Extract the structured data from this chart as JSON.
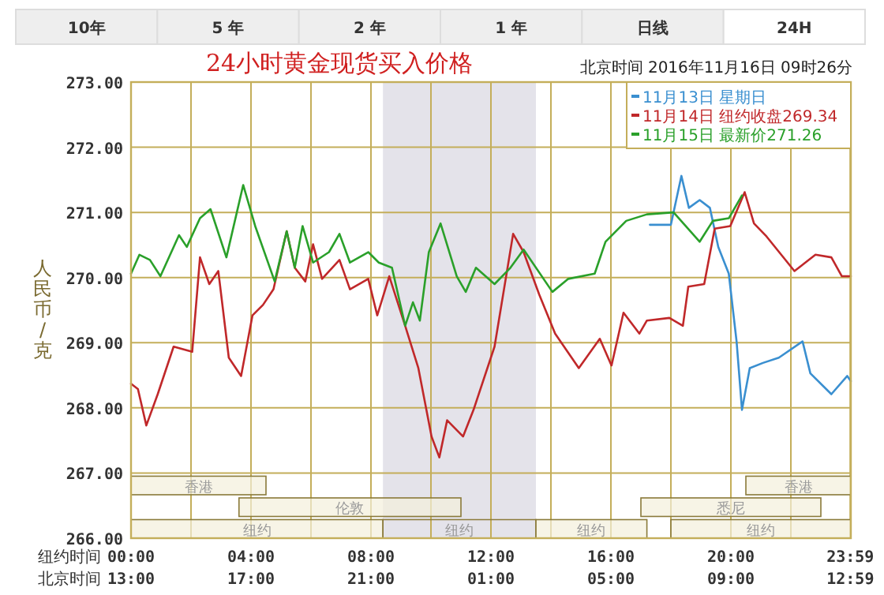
{
  "chart_data": {
    "type": "line",
    "title": "24小时黄金现货买入价格",
    "subtitle": "北京时间  2016年11月16日 09时26分",
    "ylabel": "人民币/克",
    "xlabel": "纽约时间",
    "x2label": "北京时间",
    "annotations": [
      "10年",
      "5 年",
      "2 年",
      "1 年",
      "日线",
      "24H"
    ],
    "xlim": [
      0,
      24
    ],
    "ylim": [
      266,
      273
    ],
    "xticks": [
      {
        "value": 0,
        "label": "00:00"
      },
      {
        "value": 2,
        "label": null
      },
      {
        "value": 4,
        "label": "04:00"
      },
      {
        "value": 6,
        "label": null
      },
      {
        "value": 8,
        "label": "08:00"
      },
      {
        "value": 10,
        "label": null
      },
      {
        "value": 12,
        "label": "12:00"
      },
      {
        "value": 14,
        "label": null
      },
      {
        "value": 16,
        "label": "16:00"
      },
      {
        "value": 18,
        "label": null
      },
      {
        "value": 20,
        "label": "20:00"
      },
      {
        "value": 22,
        "label": null
      },
      {
        "value": 23.98,
        "label": "23:59"
      }
    ],
    "x2lim": [
      "2016-11-15T13:00",
      "2016-11-16T13:00"
    ],
    "x2ticks": [
      {
        "value": "2016-11-15T13:00",
        "label": "13:00"
      },
      {
        "value": "2016-11-15T17:00",
        "label": "17:00"
      },
      {
        "value": "2016-11-15T21:00",
        "label": "21:00"
      },
      {
        "value": "2016-11-16T01:00",
        "label": "01:00"
      },
      {
        "value": "2016-11-16T05:00",
        "label": "05:00"
      },
      {
        "value": "2016-11-16T09:00",
        "label": "09:00"
      },
      {
        "value": "2016-11-16T12:59",
        "label": "12:59"
      }
    ],
    "yticks": [
      {
        "value": 266,
        "label": "266.00"
      },
      {
        "value": 267,
        "label": "267.00"
      },
      {
        "value": 268,
        "label": "268.00"
      },
      {
        "value": 269,
        "label": "269.00"
      },
      {
        "value": 270,
        "label": "270.00"
      },
      {
        "value": 271,
        "label": "271.00"
      },
      {
        "value": 272,
        "label": "272.00"
      },
      {
        "value": 273,
        "label": "273.00"
      }
    ],
    "grid": true,
    "legend": "top right",
    "bands": [
      {
        "axis": "x",
        "from": 0,
        "to": 4.5,
        "label": "香港"
      },
      {
        "axis": "x",
        "from": 20.5,
        "to": 24,
        "label": "香港"
      },
      {
        "axis": "x",
        "from": 3.6,
        "to": 11,
        "label": "伦敦"
      },
      {
        "axis": "x",
        "from": 17,
        "to": 23,
        "label": "悉尼"
      },
      {
        "axis": "x",
        "from": 0,
        "to": 8.4,
        "label": "纽约"
      },
      {
        "axis": "x",
        "from": 8.4,
        "to": 13.5,
        "label": "纽约",
        "color": "#e4e3ea"
      },
      {
        "axis": "x",
        "from": 13.5,
        "to": 17.2,
        "label": "纽约"
      },
      {
        "axis": "x",
        "from": 18,
        "to": 24,
        "label": "纽约"
      }
    ],
    "series": [
      {
        "name": "11月13日  星期日",
        "color": "#3a8fd0",
        "x": [
          17.3,
          18.0,
          18.35,
          18.6,
          18.96,
          19.3,
          19.58,
          19.93,
          20.19,
          20.37,
          20.63,
          21.07,
          21.6,
          22.39,
          22.65,
          23.35,
          23.88,
          24
        ],
        "values": [
          270.81,
          270.81,
          271.56,
          271.07,
          271.19,
          271.07,
          270.47,
          270.06,
          269.02,
          267.97,
          268.61,
          268.69,
          268.77,
          269.02,
          268.53,
          268.21,
          268.49,
          268.41
        ]
      },
      {
        "name": "11月14日  纽约收盘269.34",
        "color": "#c0282a",
        "x": [
          0,
          0.23,
          0.51,
          0.89,
          1.42,
          2.04,
          2.3,
          2.61,
          2.91,
          3.26,
          3.67,
          4.05,
          4.4,
          4.75,
          5.19,
          5.46,
          5.81,
          6.07,
          6.37,
          6.95,
          7.3,
          7.91,
          8.21,
          8.61,
          9.14,
          9.58,
          10.02,
          10.28,
          10.54,
          11.07,
          11.42,
          12.12,
          12.74,
          13.09,
          13.61,
          14.14,
          14.93,
          15.63,
          16.02,
          16.42,
          16.95,
          17.2,
          17.95,
          18.4,
          18.58,
          19.11,
          19.46,
          19.98,
          20.46,
          20.77,
          21.19,
          22.12,
          22.82,
          23.35,
          23.7,
          24
        ],
        "values": [
          268.37,
          268.29,
          267.73,
          268.21,
          268.94,
          268.86,
          270.31,
          269.9,
          270.1,
          268.77,
          268.49,
          269.42,
          269.58,
          269.82,
          270.71,
          270.15,
          269.94,
          270.51,
          269.98,
          270.27,
          269.82,
          269.98,
          269.42,
          270.02,
          269.26,
          268.61,
          267.56,
          267.24,
          267.81,
          267.56,
          267.97,
          268.94,
          270.67,
          270.39,
          269.74,
          269.14,
          268.61,
          269.06,
          268.65,
          269.46,
          269.14,
          269.34,
          269.38,
          269.26,
          269.86,
          269.9,
          270.75,
          270.79,
          271.31,
          270.83,
          270.63,
          270.1,
          270.35,
          270.31,
          270.02,
          270.02
        ]
      },
      {
        "name": "11月15日  最新价271.26",
        "color": "#2aa02a",
        "x": [
          0,
          0.28,
          0.63,
          0.98,
          1.6,
          1.86,
          2.3,
          2.65,
          3.18,
          3.74,
          4.14,
          4.79,
          5.19,
          5.46,
          5.72,
          6.07,
          6.6,
          6.95,
          7.3,
          7.91,
          8.26,
          8.7,
          9.14,
          9.4,
          9.63,
          9.93,
          10.32,
          10.86,
          11.16,
          11.5,
          12.12,
          12.65,
          13.09,
          14.05,
          14.58,
          15.46,
          15.82,
          16.51,
          17.2,
          18.09,
          18.96,
          19.4,
          19.93,
          20.37
        ],
        "values": [
          270.06,
          270.35,
          270.27,
          270.02,
          270.65,
          270.47,
          270.91,
          271.05,
          270.31,
          271.42,
          270.79,
          269.94,
          270.71,
          270.15,
          270.79,
          270.23,
          270.39,
          270.67,
          270.23,
          270.39,
          270.23,
          270.15,
          269.26,
          269.62,
          269.34,
          270.39,
          270.83,
          270.02,
          269.78,
          270.15,
          269.9,
          270.15,
          270.43,
          269.78,
          269.98,
          270.06,
          270.55,
          270.87,
          270.97,
          271.0,
          270.55,
          270.87,
          270.91,
          271.26
        ]
      }
    ]
  }
}
